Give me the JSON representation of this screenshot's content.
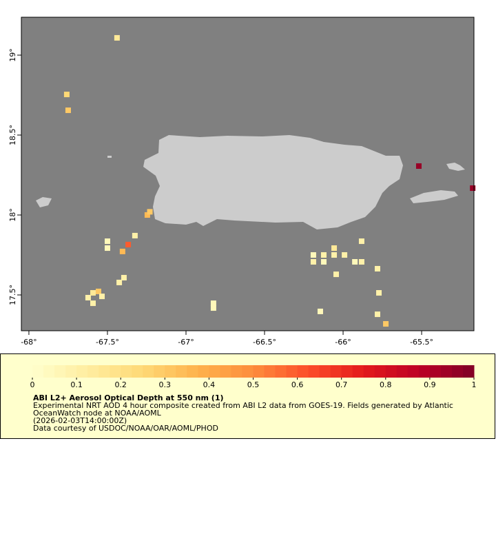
{
  "chart_data": {
    "type": "grid-map",
    "xlim": [
      -68.048,
      -65.167
    ],
    "ylim": [
      17.276,
      19.237
    ],
    "xticks": [
      {
        "value": -68,
        "label": "-68°"
      },
      {
        "value": -67.5,
        "label": "-67.5°"
      },
      {
        "value": -67,
        "label": "-67°"
      },
      {
        "value": -66.5,
        "label": "-66.5°"
      },
      {
        "value": -66,
        "label": "-66°"
      },
      {
        "value": -65.5,
        "label": "-65.5°"
      }
    ],
    "yticks": [
      {
        "value": 17.5,
        "label": "17.5°"
      },
      {
        "value": 18,
        "label": "18°"
      },
      {
        "value": 18.5,
        "label": "18.5°"
      },
      {
        "value": 19,
        "label": "19°"
      }
    ],
    "colormap": [
      "#ffffcc",
      "#ffeda0",
      "#fed976",
      "#feb24c",
      "#fd8d3c",
      "#fc4e2a",
      "#e31a1c",
      "#bd0026",
      "#800026"
    ],
    "colorbar_lim": [
      0,
      1
    ],
    "colorbar_ticks": [
      0,
      0.1,
      0.2,
      0.3,
      0.4,
      0.5,
      0.6,
      0.7,
      0.8,
      0.9,
      1
    ],
    "cells": [
      {
        "lon": -67.439,
        "lat": 19.108,
        "value": 0.15
      },
      {
        "lon": -67.759,
        "lat": 18.754,
        "value": 0.25
      },
      {
        "lon": -67.75,
        "lat": 18.655,
        "value": 0.3
      },
      {
        "lon": -67.246,
        "lat": 18.0,
        "value": 0.35
      },
      {
        "lon": -67.23,
        "lat": 18.02,
        "value": 0.3
      },
      {
        "lon": -67.5,
        "lat": 17.836,
        "value": 0.05
      },
      {
        "lon": -67.5,
        "lat": 17.793,
        "value": 0.05
      },
      {
        "lon": -67.368,
        "lat": 17.815,
        "value": 0.6
      },
      {
        "lon": -67.325,
        "lat": 17.871,
        "value": 0.1
      },
      {
        "lon": -67.404,
        "lat": 17.772,
        "value": 0.35
      },
      {
        "lon": -67.592,
        "lat": 17.513,
        "value": 0.15
      },
      {
        "lon": -67.557,
        "lat": 17.522,
        "value": 0.3
      },
      {
        "lon": -67.623,
        "lat": 17.483,
        "value": 0.1
      },
      {
        "lon": -67.535,
        "lat": 17.491,
        "value": 0.1
      },
      {
        "lon": -67.592,
        "lat": 17.448,
        "value": 0.1
      },
      {
        "lon": -67.425,
        "lat": 17.578,
        "value": 0.1
      },
      {
        "lon": -67.395,
        "lat": 17.608,
        "value": 0.1
      },
      {
        "lon": -66.825,
        "lat": 17.448,
        "value": 0.05
      },
      {
        "lon": -66.825,
        "lat": 17.418,
        "value": 0.05
      },
      {
        "lon": -65.518,
        "lat": 18.306,
        "value": 0.95
      },
      {
        "lon": -65.175,
        "lat": 18.168,
        "value": 0.95
      },
      {
        "lon": -66.189,
        "lat": 17.75,
        "value": 0.05
      },
      {
        "lon": -66.189,
        "lat": 17.707,
        "value": 0.1
      },
      {
        "lon": -66.123,
        "lat": 17.75,
        "value": 0.1
      },
      {
        "lon": -66.123,
        "lat": 17.707,
        "value": 0.05
      },
      {
        "lon": -66.057,
        "lat": 17.793,
        "value": 0.15
      },
      {
        "lon": -66.057,
        "lat": 17.75,
        "value": 0.1
      },
      {
        "lon": -65.991,
        "lat": 17.75,
        "value": 0.1
      },
      {
        "lon": -65.925,
        "lat": 17.707,
        "value": 0.05
      },
      {
        "lon": -65.882,
        "lat": 17.707,
        "value": 0.1
      },
      {
        "lon": -65.882,
        "lat": 17.836,
        "value": 0.1
      },
      {
        "lon": -66.044,
        "lat": 17.629,
        "value": 0.1
      },
      {
        "lon": -65.781,
        "lat": 17.664,
        "value": 0.1
      },
      {
        "lon": -65.772,
        "lat": 17.513,
        "value": 0.1
      },
      {
        "lon": -65.781,
        "lat": 17.379,
        "value": 0.1
      },
      {
        "lon": -65.728,
        "lat": 17.319,
        "value": 0.3
      },
      {
        "lon": -66.145,
        "lat": 17.397,
        "value": 0.05
      }
    ],
    "title": "ABI L2+ Aerosol Optical Depth at 550 nm (1)",
    "caption_lines": [
      "Experimental NRT AOD 4 hour composite created from ABI L2 data from GOES-19. Fields generated by Atlantic",
      "OceanWatch node at NOAA/AOML",
      "(2026-02-03T14:00:00Z)",
      "Data courtesy of USDOC/NOAA/OAR/AOML/PHOD"
    ]
  }
}
